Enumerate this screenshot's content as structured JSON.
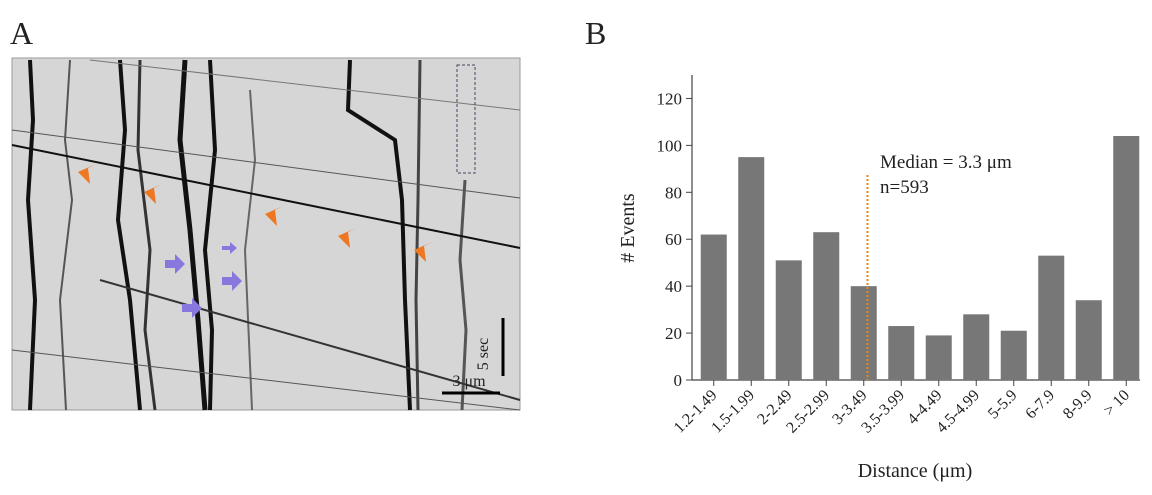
{
  "panels": {
    "a": "A",
    "b": "B"
  },
  "kymograph": {
    "time_scale": "5 sec",
    "distance_scale": "3 μm"
  },
  "chart_data": {
    "type": "bar",
    "categories": [
      "1.2-1.49",
      "1.5-1.99",
      "2-2.49",
      "2.5-2.99",
      "3-3.49",
      "3.5-3.99",
      "4-4.49",
      "4.5-4.99",
      "5-5.9",
      "6-7.9",
      "8-9.9",
      "> 10"
    ],
    "values": [
      62,
      95,
      51,
      63,
      40,
      23,
      19,
      28,
      21,
      53,
      34,
      104
    ],
    "color": "#777777",
    "ylim": [
      0,
      130
    ],
    "yticks": [
      0,
      20,
      40,
      60,
      80,
      100,
      120
    ],
    "ylabel": "# Events",
    "xlabel": "Distance (μm)",
    "median": 3.3,
    "median_color": "#e08a1a",
    "annotations": [
      "Median = 3.3 μm",
      "n=593"
    ]
  }
}
